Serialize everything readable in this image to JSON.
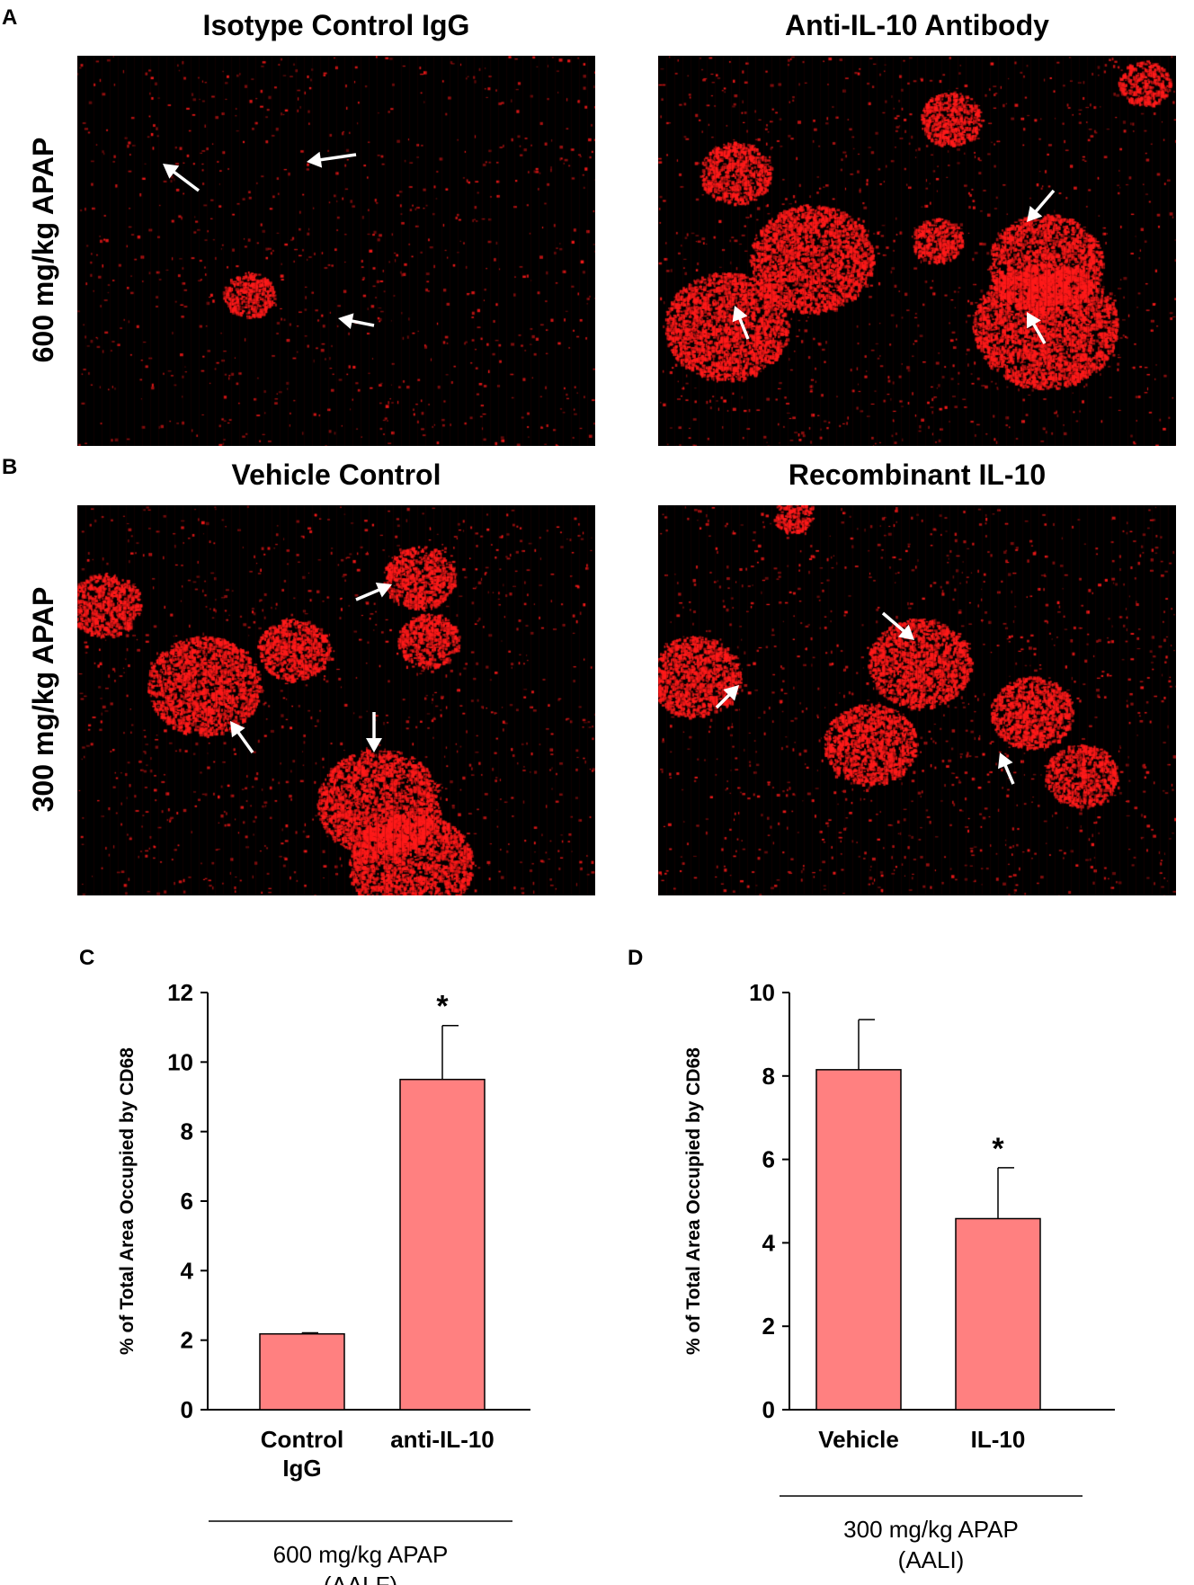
{
  "panels": {
    "A": "A",
    "B": "B",
    "C": "C",
    "D": "D"
  },
  "row_labels": [
    "600 mg/kg APAP",
    "300 mg/kg APAP"
  ],
  "images": [
    {
      "title": "Isotype Control IgG",
      "stain_color": "#ff1a1a"
    },
    {
      "title": "Anti-IL-10 Antibody",
      "stain_color": "#ff1a1a"
    },
    {
      "title": "Vehicle Control",
      "stain_color": "#ff1a1a"
    },
    {
      "title": "Recombinant IL-10",
      "stain_color": "#ff1a1a"
    }
  ],
  "chart_data": [
    {
      "type": "bar",
      "categories": [
        "Control IgG",
        "anti-IL-10"
      ],
      "category_lines": [
        [
          "Control",
          "IgG"
        ],
        [
          "anti-IL-10"
        ]
      ],
      "values": [
        2.18,
        9.5
      ],
      "errors": [
        0.03,
        1.55
      ],
      "significance": [
        "",
        "*"
      ],
      "ylabel": "% of Total Area Occupied by CD68",
      "ylim": [
        0,
        12
      ],
      "yticks": [
        0,
        2,
        4,
        6,
        8,
        10,
        12
      ],
      "group_label": [
        "600 mg/kg APAP",
        "(AALF)"
      ],
      "bar_color": "#ff8080",
      "grid": false
    },
    {
      "type": "bar",
      "categories": [
        "Vehicle",
        "IL-10"
      ],
      "category_lines": [
        [
          "Vehicle"
        ],
        [
          "IL-10"
        ]
      ],
      "values": [
        8.15,
        4.58
      ],
      "errors": [
        1.2,
        1.22
      ],
      "significance": [
        "",
        "*"
      ],
      "ylabel": "% of Total Area Occupied by CD68",
      "ylim": [
        0,
        10
      ],
      "yticks": [
        0,
        2,
        4,
        6,
        8,
        10
      ],
      "group_label": [
        "300 mg/kg APAP",
        "(AALI)"
      ],
      "bar_color": "#ff8080",
      "grid": false
    }
  ]
}
